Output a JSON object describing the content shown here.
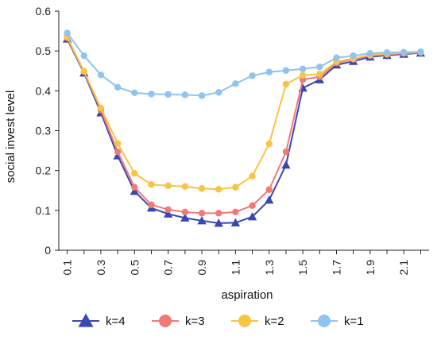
{
  "chart_data": {
    "type": "line",
    "title": "",
    "xlabel": "aspiration",
    "ylabel": "social invest level",
    "x": [
      0.1,
      0.2,
      0.3,
      0.4,
      0.5,
      0.6,
      0.7,
      0.8,
      0.9,
      1.0,
      1.1,
      1.2,
      1.3,
      1.4,
      1.5,
      1.6,
      1.7,
      1.8,
      1.9,
      2.0,
      2.1,
      2.2
    ],
    "xticks": [
      "0.1",
      "0.3",
      "0.5",
      "0.7",
      "0.9",
      "1.1",
      "1.3",
      "1.5",
      "1.7",
      "1.9",
      "2.1"
    ],
    "xlim": [
      0.05,
      2.25
    ],
    "ylim": [
      0,
      0.6
    ],
    "yticks": [
      "0",
      "0.1",
      "0.2",
      "0.3",
      "0.4",
      "0.5",
      "0.6"
    ],
    "grid": false,
    "legend_position": "bottom",
    "series": [
      {
        "name": "k=4",
        "marker": "triangle",
        "color": "#3b47b0",
        "values": [
          0.53,
          0.445,
          0.345,
          0.237,
          0.148,
          0.106,
          0.091,
          0.081,
          0.074,
          0.068,
          0.069,
          0.084,
          0.126,
          0.214,
          0.407,
          0.428,
          0.465,
          0.474,
          0.485,
          0.489,
          0.492,
          0.495
        ]
      },
      {
        "name": "k=3",
        "marker": "circle",
        "color": "#f07a78",
        "values": [
          0.533,
          0.448,
          0.352,
          0.247,
          0.158,
          0.114,
          0.102,
          0.096,
          0.093,
          0.093,
          0.096,
          0.112,
          0.152,
          0.247,
          0.428,
          0.435,
          0.47,
          0.479,
          0.488,
          0.491,
          0.494,
          0.496
        ]
      },
      {
        "name": "k=2",
        "marker": "circle",
        "color": "#f7c443",
        "values": [
          0.535,
          0.449,
          0.357,
          0.268,
          0.193,
          0.165,
          0.162,
          0.16,
          0.155,
          0.153,
          0.158,
          0.186,
          0.267,
          0.417,
          0.439,
          0.442,
          0.473,
          0.481,
          0.49,
          0.493,
          0.495,
          0.497
        ]
      },
      {
        "name": "k=1",
        "marker": "circle",
        "color": "#8fc3f0",
        "values": [
          0.545,
          0.488,
          0.44,
          0.409,
          0.395,
          0.392,
          0.391,
          0.39,
          0.388,
          0.396,
          0.418,
          0.438,
          0.447,
          0.451,
          0.455,
          0.46,
          0.483,
          0.488,
          0.494,
          0.496,
          0.497,
          0.498
        ]
      }
    ]
  }
}
